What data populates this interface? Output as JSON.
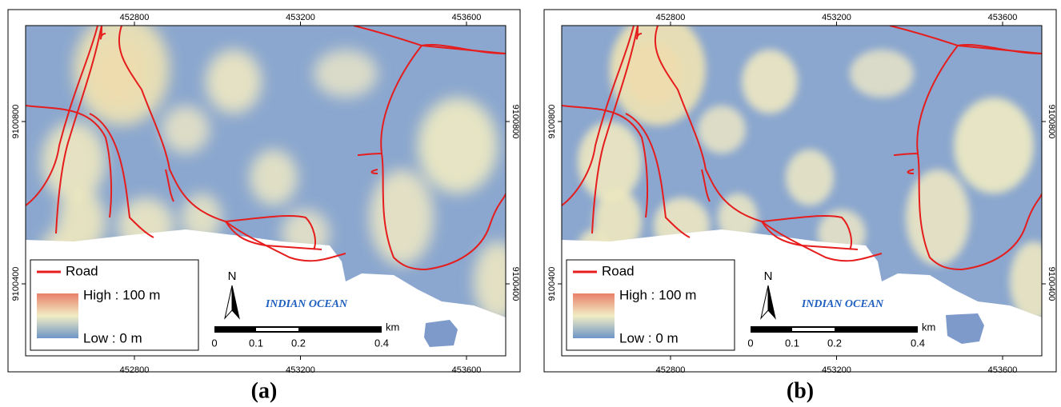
{
  "panels": [
    {
      "caption": "(a)",
      "x_ticks": [
        "452800",
        "453200",
        "453600"
      ],
      "y_ticks": [
        "9100800",
        "9100400"
      ],
      "legend": {
        "road": "Road",
        "high": "High : 100 m",
        "low": "Low : 0 m"
      },
      "north": "N",
      "ocean_label": "INDIAN OCEAN",
      "scale": {
        "labels": [
          "0",
          "0.1",
          "0.2",
          "0.4"
        ],
        "unit": "km"
      }
    },
    {
      "caption": "(b)",
      "x_ticks": [
        "452800",
        "453200",
        "453600"
      ],
      "y_ticks": [
        "9100800",
        "9100400"
      ],
      "legend": {
        "road": "Road",
        "high": "High : 100 m",
        "low": "Low : 0 m"
      },
      "north": "N",
      "ocean_label": "INDIAN OCEAN",
      "scale": {
        "labels": [
          "0",
          "0.1",
          "0.2",
          "0.4"
        ],
        "unit": "km"
      }
    }
  ]
}
